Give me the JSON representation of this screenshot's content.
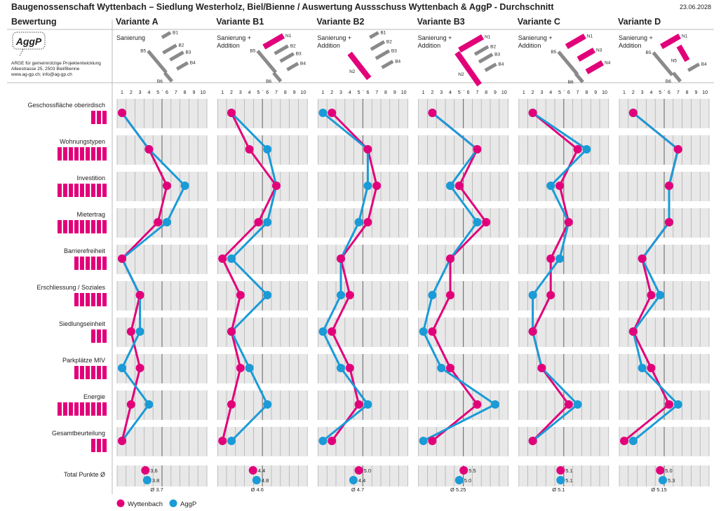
{
  "header": {
    "title": "Baugenossenschaft Wyttenbach – Siedlung Westerholz, Biel/Bienne / Auswertung Aussschuss Wyttenbach & AggP - Durchschnitt",
    "date": "23.06.2028",
    "criteria_heading": "Bewertung"
  },
  "logo": {
    "text": "AggP",
    "address": [
      "ARGE für gemeinnützige Projektentwicklung",
      "Alleestrasse 25, 2503 Biel/Bienne",
      "www.ag-gp.ch;  info@ag-gp.ch"
    ]
  },
  "colors": {
    "wyttenbach": "#e2007a",
    "aggp": "#1a9bd7",
    "band": "#e8e8e8"
  },
  "legend": [
    {
      "label": "Wyttenbach",
      "color": "#e2007a"
    },
    {
      "label": "AggP",
      "color": "#1a9bd7"
    }
  ],
  "totals_label": "Total Punkte Ø",
  "chart_data": {
    "type": "line",
    "title": "Auswertung Aussschuss Wyttenbach & AggP - Durchschnitt",
    "x_ticks": [
      "1",
      "2",
      "3",
      "4",
      "5",
      "6",
      "7",
      "8",
      "9",
      "10"
    ],
    "xlim": [
      1,
      10
    ],
    "criteria": [
      {
        "name": "Geschossfläche oberirdisch",
        "weight": 3
      },
      {
        "name": "Wohnungstypen",
        "weight": 9
      },
      {
        "name": "Investition",
        "weight": 9
      },
      {
        "name": "Mietertrag",
        "weight": 9
      },
      {
        "name": "Barrierefreiheit",
        "weight": 6
      },
      {
        "name": "Erschliessung / Soziales",
        "weight": 6
      },
      {
        "name": "Siedlungseinheit",
        "weight": 3
      },
      {
        "name": "Parkplätze MIV",
        "weight": 6
      },
      {
        "name": "Energie",
        "weight": 9
      },
      {
        "name": "Gesamtbeurteilung",
        "weight": 3
      }
    ],
    "variants": [
      {
        "name": "Variante A",
        "description": "Sanierung",
        "buildings": [
          {
            "label": "B1",
            "type": "existing"
          },
          {
            "label": "B2",
            "type": "existing"
          },
          {
            "label": "B3",
            "type": "existing"
          },
          {
            "label": "B4",
            "type": "existing"
          },
          {
            "label": "B5",
            "type": "existing"
          },
          {
            "label": "B6",
            "type": "existing"
          }
        ],
        "series": [
          {
            "name": "Wyttenbach",
            "values": [
              1,
              4,
              6,
              5,
              1,
              3,
              2,
              3,
              2,
              1
            ],
            "total": "3,6"
          },
          {
            "name": "AggP",
            "values": [
              1,
              4,
              8,
              6,
              1,
              3,
              3,
              1,
              4,
              1
            ],
            "total": "3.8"
          }
        ],
        "average": "Ø 3.7"
      },
      {
        "name": "Variante B1",
        "description": "Sanierung + Addition",
        "buildings": [
          {
            "label": "N1",
            "type": "new"
          },
          {
            "label": "B2",
            "type": "existing"
          },
          {
            "label": "B3",
            "type": "existing"
          },
          {
            "label": "B4",
            "type": "existing"
          },
          {
            "label": "B5",
            "type": "existing"
          },
          {
            "label": "B6",
            "type": "existing"
          }
        ],
        "series": [
          {
            "name": "Wyttenbach",
            "values": [
              2,
              4,
              7,
              5,
              1,
              3,
              2,
              3,
              2,
              1
            ],
            "total": "4.4"
          },
          {
            "name": "AggP",
            "values": [
              2,
              6,
              7,
              6,
              2,
              6,
              2,
              4,
              6,
              2
            ],
            "total": "4.8"
          }
        ],
        "average": "Ø 4.6"
      },
      {
        "name": "Variante B2",
        "description": "Sanierung + Addition",
        "buildings": [
          {
            "label": "B1",
            "type": "existing"
          },
          {
            "label": "B2",
            "type": "existing"
          },
          {
            "label": "B3",
            "type": "existing"
          },
          {
            "label": "B4",
            "type": "existing"
          },
          {
            "label": "N2",
            "type": "new"
          }
        ],
        "series": [
          {
            "name": "Wyttenbach",
            "values": [
              2,
              6,
              7,
              6,
              3,
              4,
              2,
              4,
              5,
              2
            ],
            "total": "5.0"
          },
          {
            "name": "AggP",
            "values": [
              1,
              6,
              6,
              5,
              3,
              3,
              1,
              3,
              6,
              1
            ],
            "total": "4.4"
          }
        ],
        "average": "Ø 4.7"
      },
      {
        "name": "Variante B3",
        "description": "Sanierung + Addition",
        "buildings": [
          {
            "label": "N1",
            "type": "new"
          },
          {
            "label": "B2",
            "type": "existing"
          },
          {
            "label": "B3",
            "type": "existing"
          },
          {
            "label": "B4",
            "type": "existing"
          },
          {
            "label": "N2",
            "type": "new"
          }
        ],
        "series": [
          {
            "name": "Wyttenbach",
            "values": [
              2,
              7,
              5,
              8,
              4,
              4,
              2,
              4,
              7,
              2
            ],
            "total": "5.5"
          },
          {
            "name": "AggP",
            "values": [
              2,
              7,
              4,
              7,
              4,
              2,
              1,
              3,
              9,
              1
            ],
            "total": "5.0"
          }
        ],
        "average": "Ø 5.25"
      },
      {
        "name": "Variante C",
        "description": "Sanierung + Addition",
        "buildings": [
          {
            "label": "N1",
            "type": "new"
          },
          {
            "label": "N3",
            "type": "new"
          },
          {
            "label": "N4",
            "type": "new"
          },
          {
            "label": "B5",
            "type": "existing"
          },
          {
            "label": "B6",
            "type": "existing"
          }
        ],
        "series": [
          {
            "name": "Wyttenbach",
            "values": [
              2,
              7,
              5,
              6,
              4,
              4,
              2,
              3,
              6,
              2
            ],
            "total": "5.1"
          },
          {
            "name": "AggP",
            "values": [
              2,
              8,
              4,
              6,
              5,
              2,
              2,
              3,
              7,
              2
            ],
            "total": "5.1"
          }
        ],
        "average": "Ø 5.1"
      },
      {
        "name": "Variante D",
        "description": "Sanierung + Addition",
        "buildings": [
          {
            "label": "N1",
            "type": "new"
          },
          {
            "label": "N5",
            "type": "new"
          },
          {
            "label": "B5",
            "type": "existing"
          },
          {
            "label": "B6",
            "type": "existing"
          },
          {
            "label": "B4",
            "type": "existing"
          }
        ],
        "series": [
          {
            "name": "Wyttenbach",
            "values": [
              2,
              7,
              6,
              6,
              3,
              4,
              2,
              4,
              6,
              1
            ],
            "total": "5.0"
          },
          {
            "name": "AggP",
            "values": [
              2,
              7,
              6,
              6,
              3,
              5,
              2,
              3,
              7,
              2
            ],
            "total": "5.3"
          }
        ],
        "average": "Ø 5.15"
      }
    ]
  }
}
